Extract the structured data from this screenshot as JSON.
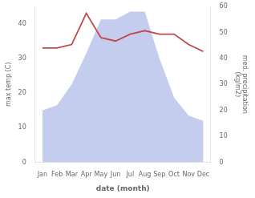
{
  "chart_data": {
    "type": "line",
    "categories": [
      "Jan",
      "Feb",
      "Mar",
      "Apr",
      "May",
      "Jun",
      "Jul",
      "Aug",
      "Sep",
      "Oct",
      "Nov",
      "Dec"
    ],
    "xlabel": "date (month)",
    "ylabel": "max temp (C)",
    "y2label": "med. precipitation\n(kg/m2)",
    "series": [
      {
        "type": "area",
        "color": "#b0bce8",
        "axis": "y2",
        "values": [
          20,
          22,
          30,
          42,
          55,
          55,
          58,
          58,
          40,
          25,
          18,
          16
        ]
      },
      {
        "type": "line",
        "color": "#c0474a",
        "values": [
          33,
          33,
          34,
          43,
          36,
          35,
          37,
          38,
          37,
          37,
          34,
          32
        ]
      }
    ],
    "ylim": [
      0,
      45
    ],
    "yticks": [
      0,
      10,
      20,
      30,
      40
    ],
    "y2lim": [
      0,
      60
    ],
    "y2ticks": [
      0,
      10,
      20,
      30,
      40,
      50,
      60
    ],
    "grid": false
  }
}
